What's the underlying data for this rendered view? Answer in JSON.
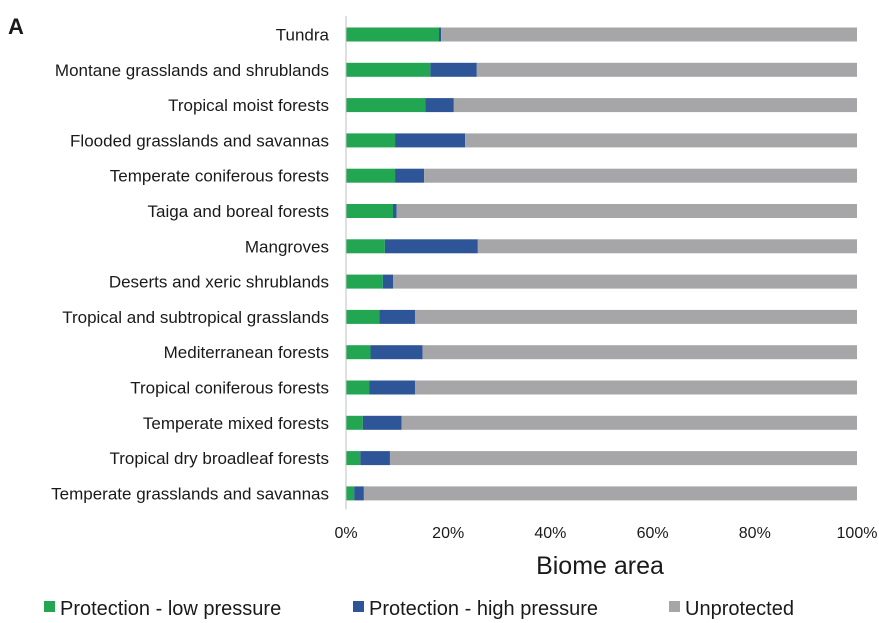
{
  "panel_label": "A",
  "chart_data": {
    "type": "bar",
    "orientation": "horizontal",
    "stacked": "percent",
    "xlabel": "Biome area",
    "xlim": [
      0,
      100
    ],
    "xticks": [
      "0%",
      "20%",
      "40%",
      "60%",
      "80%",
      "100%"
    ],
    "grid": false,
    "legend_position": "bottom",
    "categories": [
      "Tundra",
      "Montane grasslands and shrublands",
      "Tropical moist forests",
      "Flooded grasslands and savannas",
      "Temperate coniferous forests",
      "Taiga and boreal forests",
      "Mangroves",
      "Deserts and xeric shrublands",
      "Tropical and subtropical grasslands",
      "Mediterranean forests",
      "Tropical coniferous forests",
      "Temperate mixed forests",
      "Tropical dry broadleaf forests",
      "Temperate grasslands and savannas"
    ],
    "series": [
      {
        "name": "Protection - low pressure",
        "color": "#22a652",
        "values": [
          18.2,
          16.5,
          15.5,
          9.6,
          9.6,
          9.2,
          7.6,
          7.2,
          6.5,
          4.8,
          4.6,
          3.3,
          2.8,
          1.6
        ]
      },
      {
        "name": "Protection - high pressure",
        "color": "#2e5597",
        "values": [
          0.4,
          9.1,
          5.6,
          13.7,
          5.7,
          0.7,
          18.2,
          2.0,
          7.0,
          10.2,
          8.9,
          7.6,
          5.8,
          1.9
        ]
      },
      {
        "name": "Unprotected",
        "color": "#a6a6a8",
        "values": [
          81.4,
          74.4,
          78.9,
          76.7,
          84.7,
          90.1,
          74.2,
          90.8,
          86.5,
          85.0,
          86.5,
          89.1,
          91.4,
          96.5
        ]
      }
    ]
  }
}
